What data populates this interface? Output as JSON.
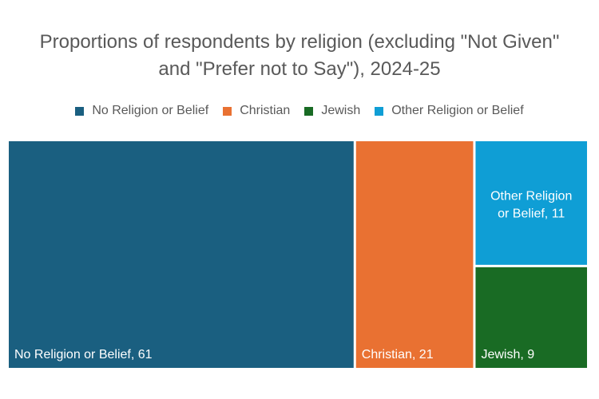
{
  "chart_data": {
    "type": "treemap",
    "title": "Proportions of respondents by religion (excluding \"Not Given\" and \"Prefer not to Say\"), 2024-25",
    "legend_position": "top",
    "items": [
      {
        "name": "No Religion or Belief",
        "value": 61,
        "label": "No Religion or Belief, 61",
        "color": "#1a5f80"
      },
      {
        "name": "Christian",
        "value": 21,
        "label": "Christian, 21",
        "color": "#e97132"
      },
      {
        "name": "Jewish",
        "value": 9,
        "label": "Jewish, 9",
        "color": "#196b24"
      },
      {
        "name": "Other Religion or Belief",
        "value": 11,
        "label": "Other Religion or Belief, 11",
        "label_lines": [
          "Other Religion",
          "or Belief, 11"
        ],
        "color": "#0f9ed5"
      }
    ]
  }
}
